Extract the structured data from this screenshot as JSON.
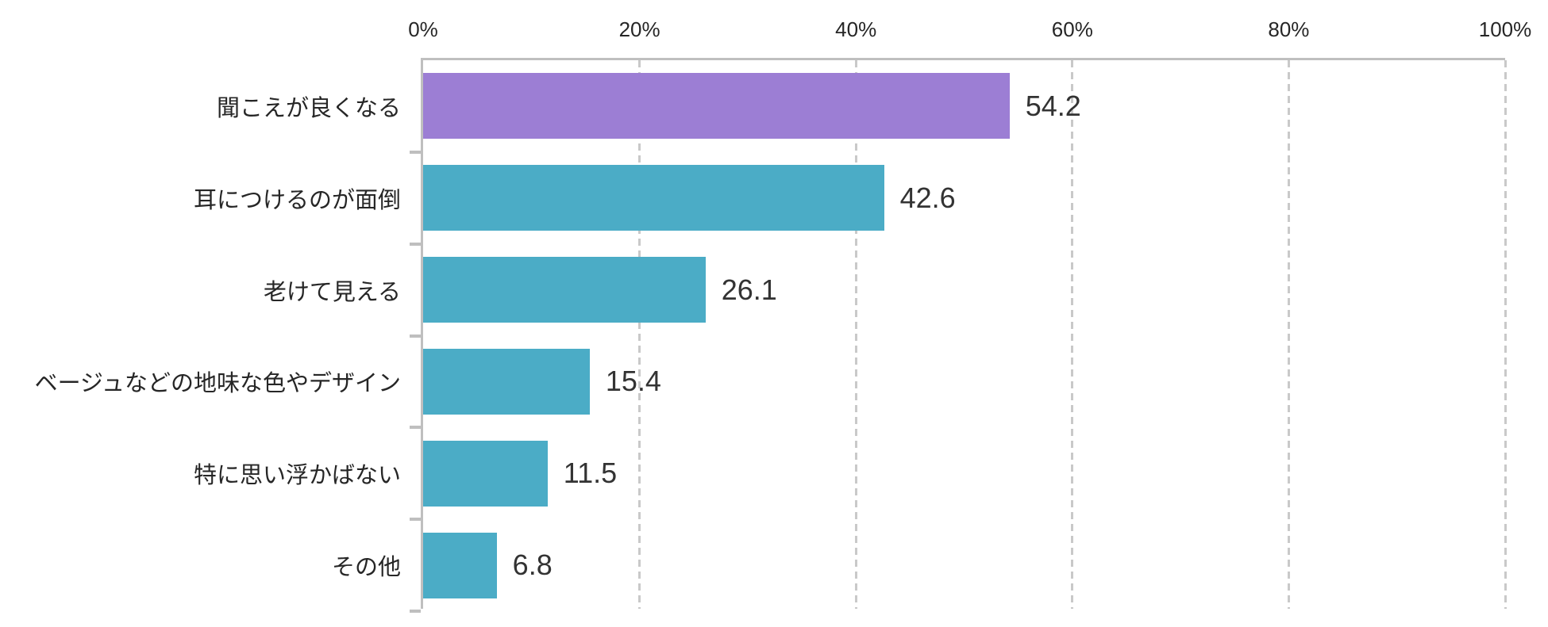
{
  "chart_data": {
    "type": "bar",
    "orientation": "horizontal",
    "title": "",
    "categories": [
      "聞こえが良くなる",
      "耳につけるのが面倒",
      "老けて見える",
      "ベージュなどの地味な色やデザイン",
      "特に思い浮かばない",
      "その他"
    ],
    "values": [
      54.2,
      42.6,
      26.1,
      15.4,
      11.5,
      6.8
    ],
    "value_labels": [
      "54.2",
      "42.6",
      "26.1",
      "15.4",
      "11.5",
      "6.8"
    ],
    "bar_colors": [
      "#9C7ED4",
      "#4BACC6",
      "#4BACC6",
      "#4BACC6",
      "#4BACC6",
      "#4BACC6"
    ],
    "x_ticks": [
      {
        "label": "0%",
        "value": 0
      },
      {
        "label": "20%",
        "value": 20
      },
      {
        "label": "40%",
        "value": 40
      },
      {
        "label": "60%",
        "value": 60
      },
      {
        "label": "80%",
        "value": 80
      },
      {
        "label": "100%",
        "value": 100
      }
    ],
    "xlim": [
      0,
      100
    ],
    "grid": "dashed-vertical",
    "legend": "none",
    "axis_color": "#BFBFBF",
    "gridline_color": "#C9C9C9",
    "text_color": "#262626"
  }
}
